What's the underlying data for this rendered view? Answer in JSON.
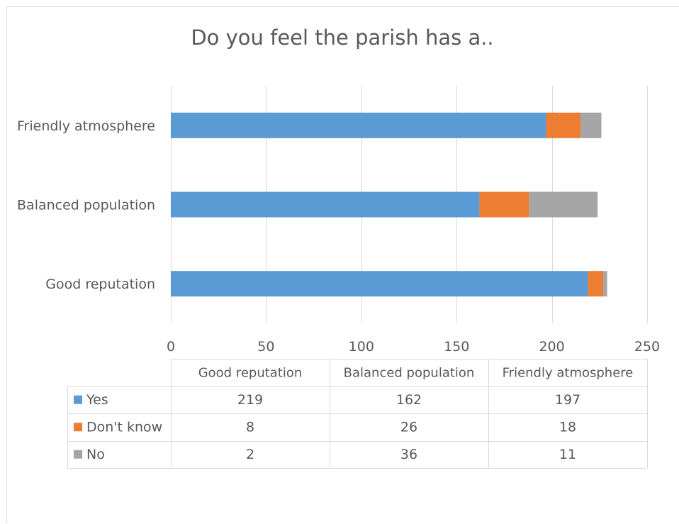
{
  "chart_data": {
    "type": "bar",
    "orientation": "horizontal",
    "stacked": true,
    "title": "Do you feel the parish has a..",
    "categories": [
      "Good reputation",
      "Balanced population",
      "Friendly atmosphere"
    ],
    "series": [
      {
        "name": "Yes",
        "color": "#5b9bd5",
        "values": [
          219,
          162,
          197
        ]
      },
      {
        "name": "Don't know",
        "color": "#ed7d31",
        "values": [
          8,
          26,
          18
        ]
      },
      {
        "name": "No",
        "color": "#a5a5a5",
        "values": [
          2,
          36,
          11
        ]
      }
    ],
    "xlim": [
      0,
      250
    ],
    "xticks": [
      0,
      50,
      100,
      150,
      200,
      250
    ],
    "grid": true,
    "legend": "data-table",
    "data_table": true
  }
}
